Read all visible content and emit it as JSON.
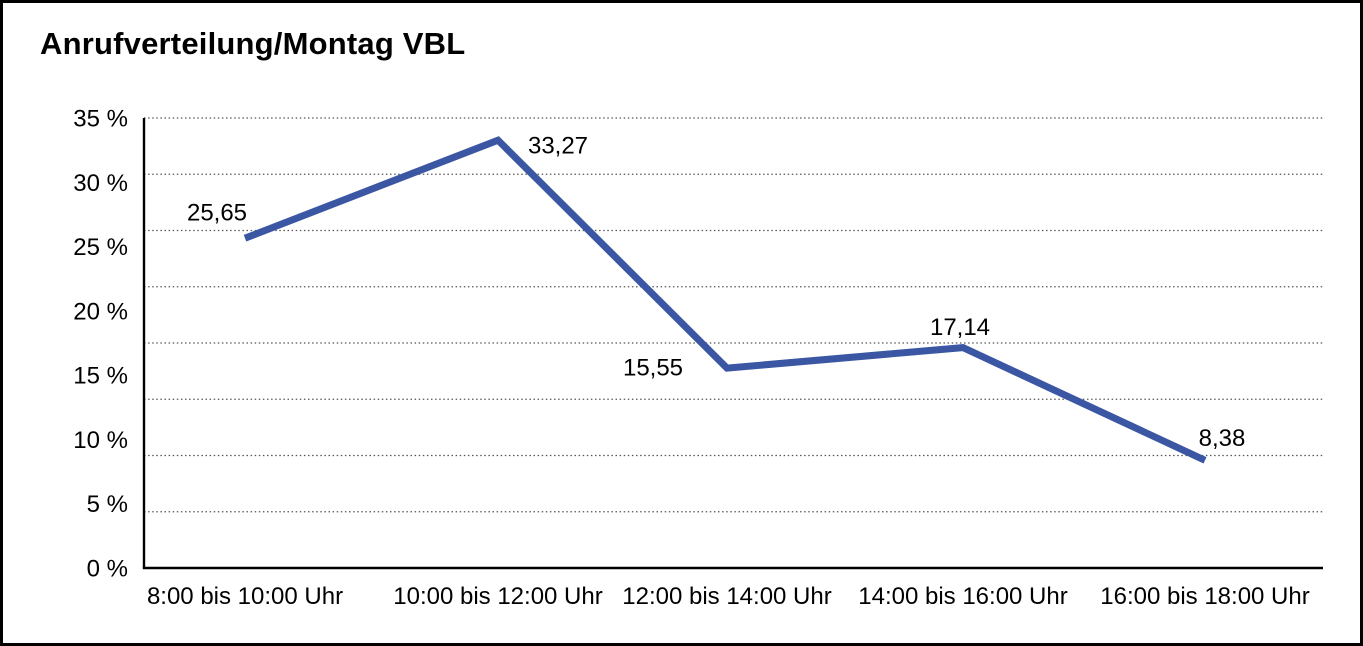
{
  "page": {
    "background": "#ffffff",
    "frame_color": "#000000"
  },
  "chart_data": {
    "type": "line",
    "title": "Anrufverteilung/Montag VBL",
    "categories": [
      "8:00 bis 10:00 Uhr",
      "10:00 bis 12:00 Uhr",
      "12:00 bis 14:00 Uhr",
      "14:00 bis 16:00 Uhr",
      "16:00 bis 18:00 Uhr"
    ],
    "values": [
      25.65,
      33.27,
      15.55,
      17.14,
      8.38
    ],
    "data_labels": [
      "25,65",
      "33,27",
      "15,55",
      "17,14",
      "8,38"
    ],
    "y_ticks": [
      {
        "value": 35,
        "label": "35 %"
      },
      {
        "value": 30,
        "label": "30 %"
      },
      {
        "value": 25,
        "label": "25 %"
      },
      {
        "value": 20,
        "label": "20 %"
      },
      {
        "value": 15,
        "label": "15 %"
      },
      {
        "value": 10,
        "label": "10 %"
      },
      {
        "value": 5,
        "label": "5 %"
      },
      {
        "value": 0,
        "label": "0 %"
      }
    ],
    "ylim": [
      0,
      35
    ],
    "xlabel": "",
    "ylabel": "",
    "legend": "none",
    "grid": "horizontal dotted",
    "grid_divisions": 8,
    "line_color": "#3B57A4",
    "grid_color": "#555555",
    "axis_color": "#000000",
    "text_color": "#000000"
  }
}
